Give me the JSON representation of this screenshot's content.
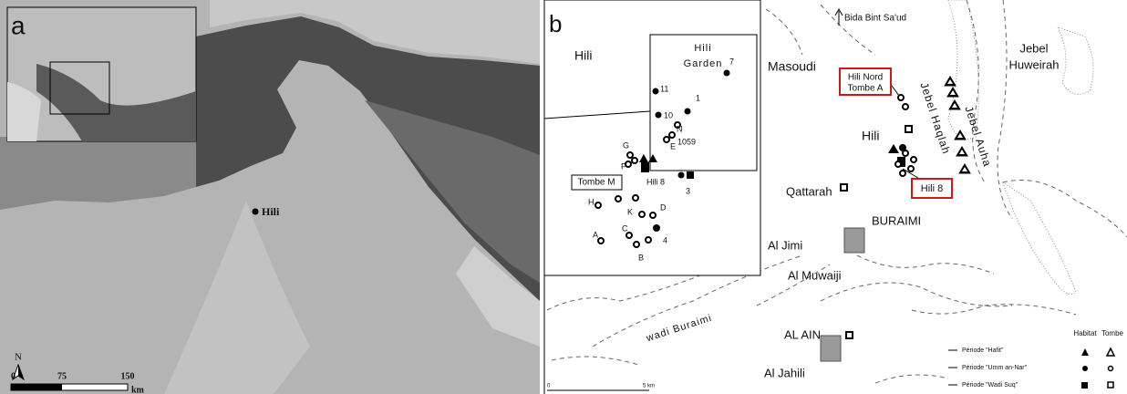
{
  "panel_a": {
    "label": "a",
    "site": "Hili",
    "north": "N",
    "scale_labels": [
      "0",
      "75",
      "150"
    ],
    "scale_unit": "km"
  },
  "panel_b": {
    "label": "b",
    "inset": {
      "title": "Hili",
      "garden": [
        "Hili",
        "Garden"
      ],
      "sites": [
        "7",
        "11",
        "1",
        "10",
        "1059",
        "N",
        "E",
        "G",
        "F",
        "Hili 8",
        "3",
        "Tombe M",
        "H",
        "K",
        "D",
        "C",
        "A",
        "B",
        "4"
      ]
    },
    "places": {
      "masoudi": "Masoudi",
      "bida": "Bida Bint Sa'ud",
      "hili_nord": [
        "Hili Nord",
        "Tombe A"
      ],
      "hili": "Hili",
      "huweirah": [
        "Jebel",
        "Huweirah"
      ],
      "haqlah": "Jebel Haqlah",
      "auha": "Jebel Auha",
      "hili8": "Hili 8",
      "qattarah": "Qattarah",
      "buraimi": "BURAIMI",
      "al_jimi": "Al Jimi",
      "al_muwaiji": "Al Muwaiji",
      "wadi": "wadi Buraimi",
      "al_ain": "AL AIN",
      "al_jahili": "Al Jahili"
    },
    "legend": {
      "columns": [
        "Habitat",
        "Tombe"
      ],
      "rows": [
        "Période \"Hafit\"",
        "Période \"Umm an-Nar\"",
        "Période \"Wadi Suq\""
      ]
    },
    "scale_labels": [
      "0",
      "5 km"
    ]
  }
}
